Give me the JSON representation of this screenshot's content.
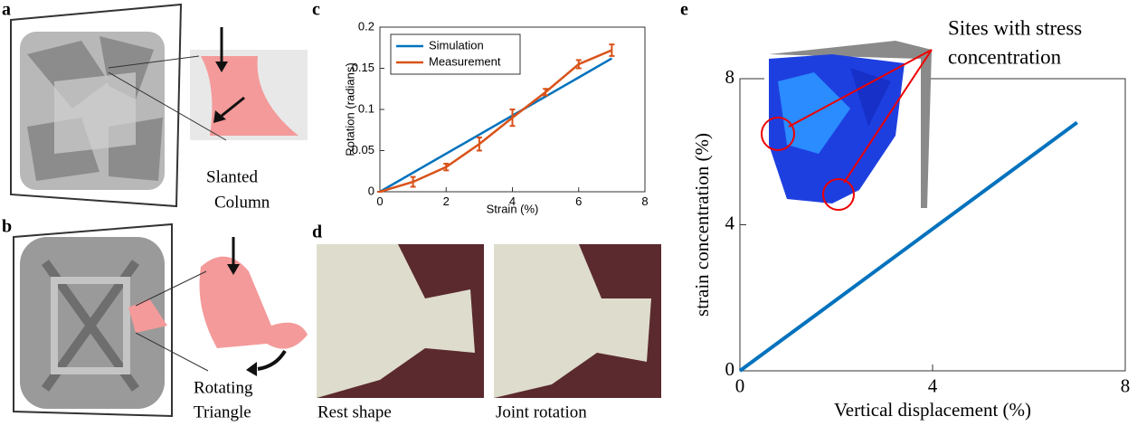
{
  "panels": {
    "a": {
      "label": "a",
      "caption": [
        "Slanted",
        "Column"
      ]
    },
    "b": {
      "label": "b",
      "caption": [
        "Rotating",
        "Triangle"
      ]
    },
    "c": {
      "label": "c"
    },
    "d": {
      "label": "d",
      "captions": [
        "Rest shape",
        "Joint rotation"
      ]
    },
    "e": {
      "label": "e"
    }
  },
  "chart_data": [
    {
      "type": "line",
      "xlabel": "Strain (%)",
      "ylabel": "Rotation (radians)",
      "xlim": [
        0,
        8
      ],
      "xticks": [
        0,
        2,
        4,
        6,
        8
      ],
      "ylim": [
        0,
        0.2
      ],
      "yticks": [
        0,
        0.05,
        0.1,
        0.15,
        0.2
      ],
      "grid": false,
      "legend": "upper-left",
      "series": [
        {
          "name": "Simulation",
          "color": "#0072bd",
          "x": [
            0,
            7
          ],
          "values": [
            0,
            0.162
          ]
        },
        {
          "name": "Measurement",
          "color": "#d95319",
          "x": [
            0,
            1,
            2,
            3,
            4,
            5,
            6,
            7
          ],
          "values": [
            0,
            0.012,
            0.03,
            0.058,
            0.09,
            0.121,
            0.155,
            0.172
          ],
          "errors": [
            0,
            0.006,
            0.004,
            0.008,
            0.01,
            0.004,
            0.005,
            0.007
          ]
        }
      ]
    },
    {
      "type": "line",
      "xlabel": "Vertical displacement (%)",
      "ylabel": "strain concentration (%)",
      "xlim": [
        0,
        8
      ],
      "xticks": [
        0,
        4,
        8
      ],
      "ylim": [
        0,
        8
      ],
      "yticks": [
        0,
        4,
        8
      ],
      "grid": false,
      "annotation": [
        "Sites with stress",
        "concentration"
      ],
      "series": [
        {
          "name": null,
          "color": "#0072bd",
          "x": [
            0,
            7
          ],
          "values": [
            0,
            6.8
          ]
        }
      ]
    }
  ]
}
